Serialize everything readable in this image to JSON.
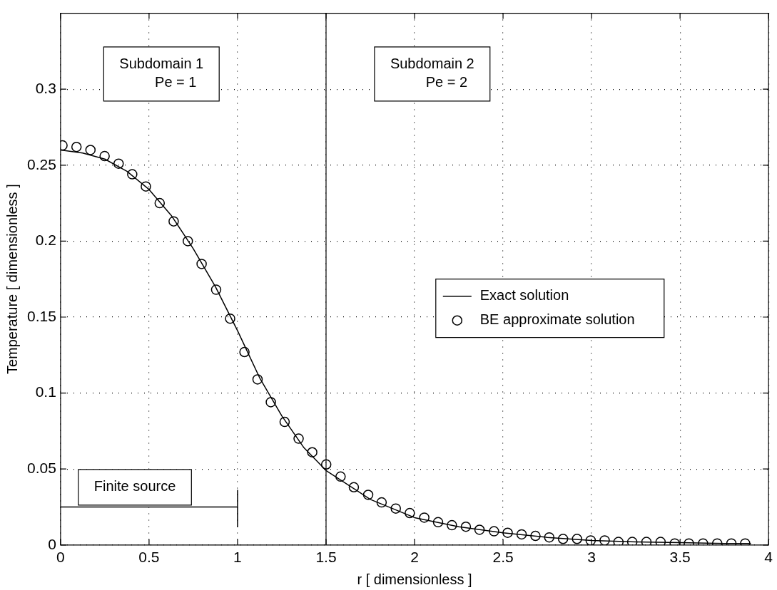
{
  "chart_data": {
    "type": "line",
    "xlabel": "r [ dimensionless ]",
    "ylabel": "Temperature [ dimensionless ]",
    "xlim": [
      0,
      4
    ],
    "ylim": [
      0,
      0.35
    ],
    "xticks": [
      0,
      0.5,
      1,
      1.5,
      2,
      2.5,
      3,
      3.5,
      4
    ],
    "yticks": [
      0,
      0.05,
      0.1,
      0.15,
      0.2,
      0.25,
      0.3
    ],
    "grid": true,
    "legend": "right",
    "series": [
      {
        "name": "Exact solution",
        "color": "#000000",
        "marker": "none",
        "line_style": "solid",
        "x": [
          0,
          0.125,
          0.25,
          0.375,
          0.5,
          0.625,
          0.75,
          0.875,
          1,
          1.125,
          1.25,
          1.375,
          1.5,
          1.75,
          2,
          2.25,
          2.5,
          2.75,
          3,
          3.25,
          3.5,
          3.75,
          3.9
        ],
        "values": [
          0.26,
          0.258,
          0.254,
          0.246,
          0.234,
          0.217,
          0.195,
          0.17,
          0.141,
          0.11,
          0.085,
          0.064,
          0.049,
          0.03,
          0.018,
          0.012,
          0.008,
          0.005,
          0.003,
          0.002,
          0.0015,
          0.001,
          0.001
        ]
      },
      {
        "name": "BE approximate solution",
        "type": "scatter",
        "color": "#000000",
        "marker": "circle",
        "x": [
          0.011,
          0.09,
          0.169,
          0.249,
          0.328,
          0.405,
          0.482,
          0.56,
          0.639,
          0.719,
          0.797,
          0.879,
          0.958,
          1.039,
          1.113,
          1.188,
          1.266,
          1.345,
          1.422,
          1.501,
          1.582,
          1.657,
          1.738,
          1.814,
          1.894,
          1.973,
          2.055,
          2.133,
          2.211,
          2.29,
          2.367,
          2.449,
          2.526,
          2.605,
          2.683,
          2.761,
          2.839,
          2.918,
          2.995,
          3.074,
          3.152,
          3.23,
          3.31,
          3.39,
          3.47,
          3.55,
          3.63,
          3.71,
          3.79,
          3.868
        ],
        "values": [
          0.263,
          0.262,
          0.26,
          0.256,
          0.251,
          0.244,
          0.236,
          0.225,
          0.213,
          0.2,
          0.185,
          0.168,
          0.149,
          0.127,
          0.109,
          0.094,
          0.081,
          0.07,
          0.061,
          0.053,
          0.045,
          0.038,
          0.033,
          0.028,
          0.024,
          0.021,
          0.018,
          0.015,
          0.013,
          0.012,
          0.01,
          0.009,
          0.008,
          0.007,
          0.006,
          0.005,
          0.004,
          0.004,
          0.003,
          0.003,
          0.002,
          0.002,
          0.002,
          0.002,
          0.001,
          0.001,
          0.001,
          0.001,
          0.001,
          0.001
        ]
      },
      {
        "color": "#000000",
        "marker": "none",
        "line_style": "solid",
        "x": [
          0,
          1,
          1,
          1
        ],
        "values": [
          0.025,
          0.025,
          0.036,
          0.012
        ]
      }
    ],
    "ref_lines": [
      {
        "axis": "x",
        "value": 1.5,
        "color": "#000000",
        "line_style": "solid"
      }
    ],
    "annotations": [
      "Subdomain 1\nPe = 1",
      "Subdomain 2\nPe = 2",
      "Finite source"
    ]
  }
}
